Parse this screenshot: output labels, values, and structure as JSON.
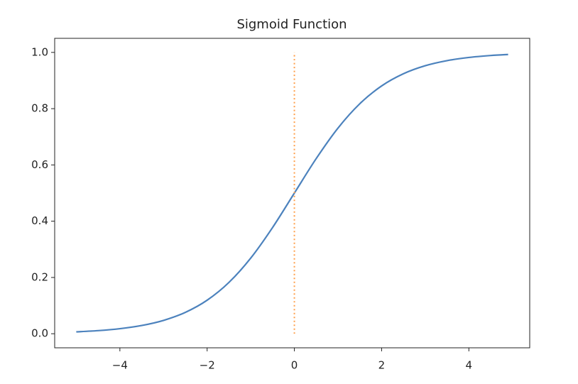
{
  "chart_data": {
    "type": "line",
    "title": "Sigmoid Function",
    "series": [
      {
        "color": "#4c82bd",
        "style": "solid",
        "x": [
          -5,
          -4.5,
          -4,
          -3.5,
          -3,
          -2.5,
          -2,
          -1.5,
          -1,
          -0.5,
          0,
          0.5,
          1,
          1.5,
          2,
          2.5,
          3,
          3.5,
          4,
          4.5,
          4.9
        ],
        "values": [
          0.0067,
          0.011,
          0.018,
          0.0293,
          0.0474,
          0.0759,
          0.1192,
          0.1824,
          0.2689,
          0.3775,
          0.5,
          0.6225,
          0.7311,
          0.8176,
          0.8808,
          0.9241,
          0.9526,
          0.9707,
          0.982,
          0.989,
          0.9926
        ]
      },
      {
        "color": "#ff9f4a",
        "style": "dotted",
        "x": [
          0,
          0
        ],
        "values": [
          0,
          1
        ]
      }
    ],
    "xlim": [
      -5.495,
      5.395
    ],
    "ylim": [
      -0.05,
      1.05
    ],
    "xticks": [
      {
        "value": -4,
        "label": "−4"
      },
      {
        "value": -2,
        "label": "−2"
      },
      0,
      2,
      4
    ],
    "yticks": [
      {
        "value": 0,
        "label": "0.0"
      },
      0.2,
      0.4,
      0.6,
      0.8,
      {
        "value": 1,
        "label": "1.0"
      }
    ],
    "grid": false
  }
}
